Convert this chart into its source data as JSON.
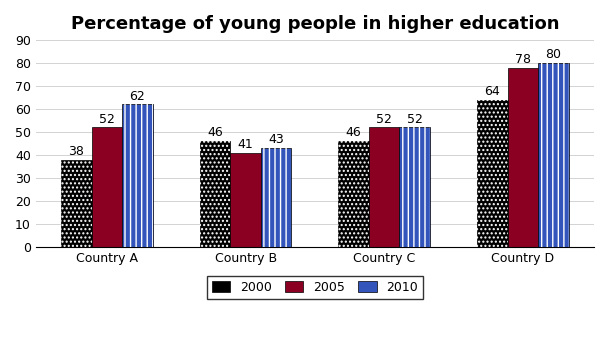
{
  "title": "Percentage of young people in higher education",
  "categories": [
    "Country A",
    "Country B",
    "Country C",
    "Country D"
  ],
  "series": {
    "2000": [
      38,
      46,
      46,
      64
    ],
    "2005": [
      52,
      41,
      52,
      78
    ],
    "2010": [
      62,
      43,
      52,
      80
    ]
  },
  "colors": {
    "2000": "#000000",
    "2005": "#8B0022",
    "2010": "#3355BB"
  },
  "hatch_colors": {
    "2000": "white",
    "2005": "none",
    "2010": "white"
  },
  "hatches": {
    "2000": "....",
    "2005": "",
    "2010": "|||"
  },
  "ylim": [
    0,
    90
  ],
  "yticks": [
    0,
    10,
    20,
    30,
    40,
    50,
    60,
    70,
    80,
    90
  ],
  "bar_width": 0.22,
  "legend_labels": [
    "2000",
    "2005",
    "2010"
  ],
  "title_fontsize": 13,
  "label_fontsize": 9,
  "tick_fontsize": 9,
  "background_color": "#ffffff"
}
